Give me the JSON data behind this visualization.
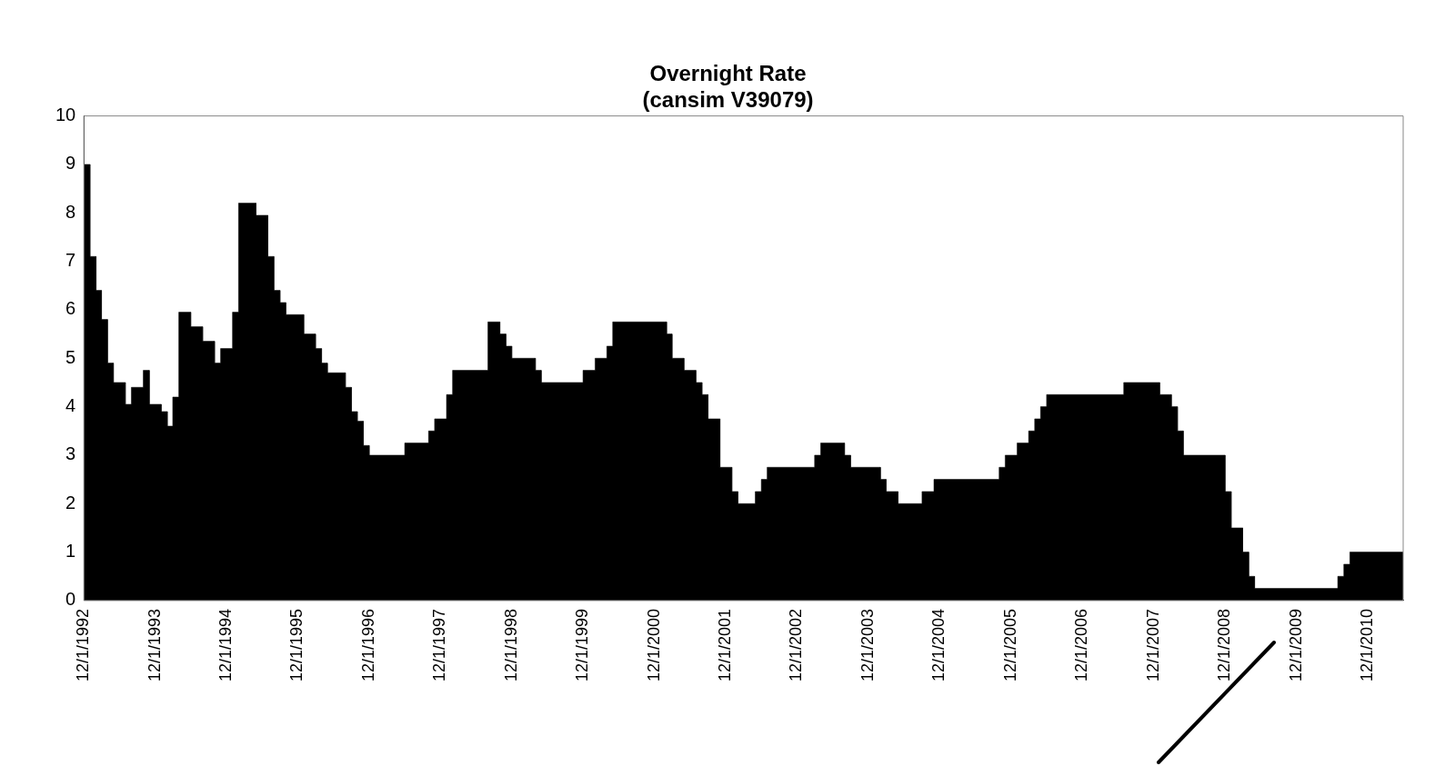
{
  "chart_data": {
    "type": "area",
    "title": "Overnight Rate\n(cansim V39079)",
    "x": [
      "1992-12",
      "1993-01",
      "1993-01",
      "1993-02",
      "1993-02",
      "1993-03",
      "1993-03",
      "1993-04",
      "1993-04",
      "1993-05",
      "1993-05",
      "1993-07",
      "1993-07",
      "1993-08",
      "1993-08",
      "1993-10",
      "1993-10",
      "1993-11",
      "1993-11",
      "1994-01",
      "1994-01",
      "1994-02",
      "1994-02",
      "1994-03",
      "1994-03",
      "1994-04",
      "1994-04",
      "1994-06",
      "1994-06",
      "1994-08",
      "1994-08",
      "1994-10",
      "1994-10",
      "1994-11",
      "1994-11",
      "1995-01",
      "1995-01",
      "1995-02",
      "1995-02",
      "1995-05",
      "1995-05",
      "1995-07",
      "1995-07",
      "1995-08",
      "1995-08",
      "1995-09",
      "1995-09",
      "1995-10",
      "1995-10",
      "1996-01",
      "1996-01",
      "1996-03",
      "1996-03",
      "1996-04",
      "1996-04",
      "1996-05",
      "1996-05",
      "1996-08",
      "1996-08",
      "1996-09",
      "1996-09",
      "1996-10",
      "1996-10",
      "1996-11",
      "1996-11",
      "1996-12",
      "1996-12",
      "1997-06",
      "1997-06",
      "1997-10",
      "1997-10",
      "1997-11",
      "1997-11",
      "1998-01",
      "1998-01",
      "1998-02",
      "1998-02",
      "1998-08",
      "1998-08",
      "1998-10",
      "1998-10",
      "1998-11",
      "1998-11",
      "1998-12",
      "1998-12",
      "1999-04",
      "1999-04",
      "1999-05",
      "1999-05",
      "1999-12",
      "1999-12",
      "2000-02",
      "2000-02",
      "2000-04",
      "2000-04",
      "2000-05",
      "2000-05",
      "2001-02",
      "2001-02",
      "2001-03",
      "2001-03",
      "2001-05",
      "2001-05",
      "2001-07",
      "2001-07",
      "2001-08",
      "2001-08",
      "2001-09",
      "2001-09",
      "2001-11",
      "2001-11",
      "2002-01",
      "2002-01",
      "2002-02",
      "2002-02",
      "2002-05",
      "2002-05",
      "2002-06",
      "2002-06",
      "2002-07",
      "2002-07",
      "2003-03",
      "2003-03",
      "2003-04",
      "2003-04",
      "2003-08",
      "2003-08",
      "2003-09",
      "2003-09",
      "2004-02",
      "2004-02",
      "2004-03",
      "2004-03",
      "2004-05",
      "2004-05",
      "2004-09",
      "2004-09",
      "2004-11",
      "2004-11",
      "2005-10",
      "2005-10",
      "2005-11",
      "2005-11",
      "2006-01",
      "2006-01",
      "2006-03",
      "2006-03",
      "2006-04",
      "2006-04",
      "2006-05",
      "2006-05",
      "2006-06",
      "2006-06",
      "2007-07",
      "2007-07",
      "2008-01",
      "2008-01",
      "2008-03",
      "2008-03",
      "2008-04",
      "2008-04",
      "2008-05",
      "2008-05",
      "2008-12",
      "2008-12",
      "2009-01",
      "2009-01",
      "2009-03",
      "2009-03",
      "2009-04",
      "2009-04",
      "2009-05",
      "2009-05",
      "2010-07",
      "2010-07",
      "2010-08",
      "2010-08",
      "2010-09",
      "2010-09",
      "2011-06"
    ],
    "series": [
      {
        "color": "#000000",
        "values": [
          9.0,
          9.0,
          7.1,
          7.1,
          6.4,
          6.4,
          5.8,
          5.8,
          4.9,
          4.9,
          4.5,
          4.5,
          4.05,
          4.05,
          4.4,
          4.4,
          4.75,
          4.75,
          4.05,
          4.05,
          3.9,
          3.9,
          3.6,
          3.6,
          4.2,
          4.2,
          5.95,
          5.95,
          5.65,
          5.65,
          5.35,
          5.35,
          4.9,
          4.9,
          5.2,
          5.2,
          5.95,
          5.95,
          8.2,
          8.2,
          7.95,
          7.95,
          7.1,
          7.1,
          6.4,
          6.4,
          6.15,
          6.15,
          5.9,
          5.9,
          5.5,
          5.5,
          5.2,
          5.2,
          4.9,
          4.9,
          4.7,
          4.7,
          4.4,
          4.4,
          3.9,
          3.9,
          3.7,
          3.7,
          3.2,
          3.2,
          3.0,
          3.0,
          3.25,
          3.25,
          3.5,
          3.5,
          3.75,
          3.75,
          4.25,
          4.25,
          4.75,
          4.75,
          5.75,
          5.75,
          5.5,
          5.5,
          5.25,
          5.25,
          5.0,
          5.0,
          4.75,
          4.75,
          4.5,
          4.5,
          4.75,
          4.75,
          5.0,
          5.0,
          5.25,
          5.25,
          5.75,
          5.75,
          5.5,
          5.5,
          5.0,
          5.0,
          4.75,
          4.75,
          4.5,
          4.5,
          4.25,
          4.25,
          3.75,
          3.75,
          2.75,
          2.75,
          2.25,
          2.25,
          2.0,
          2.0,
          2.25,
          2.25,
          2.5,
          2.5,
          2.75,
          2.75,
          3.0,
          3.0,
          3.25,
          3.25,
          3.0,
          3.0,
          2.75,
          2.75,
          2.5,
          2.5,
          2.25,
          2.25,
          2.0,
          2.0,
          2.25,
          2.25,
          2.5,
          2.5,
          2.75,
          2.75,
          3.0,
          3.0,
          3.25,
          3.25,
          3.5,
          3.5,
          3.75,
          3.75,
          4.0,
          4.0,
          4.25,
          4.25,
          4.5,
          4.5,
          4.25,
          4.25,
          4.0,
          4.0,
          3.5,
          3.5,
          3.0,
          3.0,
          2.25,
          2.25,
          1.5,
          1.5,
          1.0,
          1.0,
          0.5,
          0.5,
          0.25,
          0.25,
          0.5,
          0.5,
          0.75,
          0.75,
          1.0,
          1.0
        ]
      }
    ],
    "xlim": [
      "1992-12",
      "2011-06"
    ],
    "xticks": [
      {
        "value": "1992-12-01",
        "label": "12/1/1992"
      },
      {
        "value": "1993-12-01",
        "label": "12/1/1993"
      },
      {
        "value": "1994-12-01",
        "label": "12/1/1994"
      },
      {
        "value": "1995-12-01",
        "label": "12/1/1995"
      },
      {
        "value": "1996-12-01",
        "label": "12/1/1996"
      },
      {
        "value": "1997-12-01",
        "label": "12/1/1997"
      },
      {
        "value": "1998-12-01",
        "label": "12/1/1998"
      },
      {
        "value": "1999-12-01",
        "label": "12/1/1999"
      },
      {
        "value": "2000-12-01",
        "label": "12/1/2000"
      },
      {
        "value": "2001-12-01",
        "label": "12/1/2001"
      },
      {
        "value": "2002-12-01",
        "label": "12/1/2002"
      },
      {
        "value": "2003-12-01",
        "label": "12/1/2003"
      },
      {
        "value": "2004-12-01",
        "label": "12/1/2004"
      },
      {
        "value": "2005-12-01",
        "label": "12/1/2005"
      },
      {
        "value": "2006-12-01",
        "label": "12/1/2006"
      },
      {
        "value": "2007-12-01",
        "label": "12/1/2007"
      },
      {
        "value": "2008-12-01",
        "label": "12/1/2008"
      },
      {
        "value": "2009-12-01",
        "label": "12/1/2009"
      },
      {
        "value": "2010-12-01",
        "label": "12/1/2010"
      }
    ],
    "ylim": [
      0,
      10
    ],
    "yticks": [
      0,
      1,
      2,
      3,
      4,
      5,
      6,
      7,
      8,
      9,
      10
    ],
    "grid": false,
    "legend": false
  }
}
